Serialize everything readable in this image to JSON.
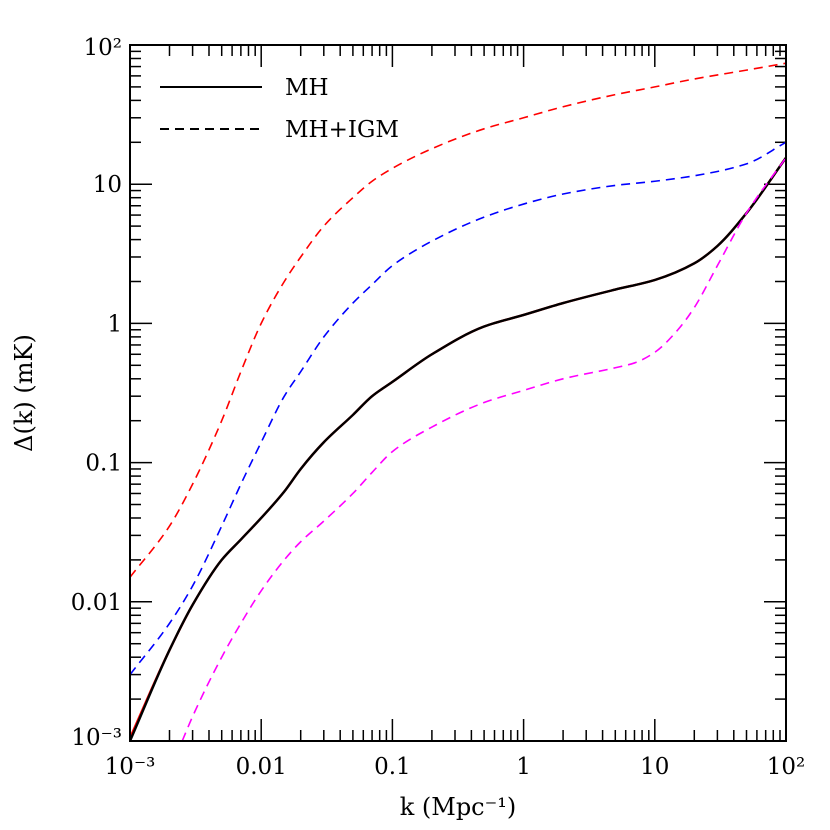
{
  "chart_data": {
    "type": "line",
    "xlabel": "k (Mpc⁻¹)",
    "ylabel": "Δ(k) (mK)",
    "xscale": "log",
    "yscale": "log",
    "xlim": [
      0.001,
      100
    ],
    "ylim": [
      0.001,
      100
    ],
    "grid": false,
    "legend_position": "top-left",
    "x_ticks": [
      {
        "value": 0.001,
        "label": "10⁻³"
      },
      {
        "value": 0.01,
        "label": "0.01"
      },
      {
        "value": 0.1,
        "label": "0.1"
      },
      {
        "value": 1,
        "label": "1"
      },
      {
        "value": 10,
        "label": "10"
      },
      {
        "value": 100,
        "label": "10²"
      }
    ],
    "y_ticks": [
      {
        "value": 0.001,
        "label": "10⁻³"
      },
      {
        "value": 0.01,
        "label": "0.01"
      },
      {
        "value": 0.1,
        "label": "0.1"
      },
      {
        "value": 1,
        "label": "1"
      },
      {
        "value": 10,
        "label": "10"
      },
      {
        "value": 100,
        "label": "10²"
      }
    ],
    "legend": [
      {
        "label": "MH",
        "style": "solid"
      },
      {
        "label": "MH+IGM",
        "style": "dashed"
      }
    ],
    "series": [
      {
        "color": "#ff0000",
        "style": "dashed",
        "x": [
          0.001,
          0.002,
          0.003,
          0.005,
          0.007,
          0.01,
          0.015,
          0.02,
          0.03,
          0.05,
          0.07,
          0.1,
          0.2,
          0.5,
          1,
          2,
          5,
          10,
          20,
          50,
          100
        ],
        "y": [
          0.015,
          0.035,
          0.07,
          0.2,
          0.45,
          1.0,
          2.0,
          3.0,
          5.0,
          8.0,
          10.5,
          13.0,
          18.0,
          25.0,
          30.0,
          36.0,
          44.0,
          50.0,
          57.0,
          66.0,
          74.0
        ]
      },
      {
        "color": "#0000ff",
        "style": "dashed",
        "x": [
          0.001,
          0.002,
          0.003,
          0.005,
          0.007,
          0.01,
          0.015,
          0.02,
          0.03,
          0.05,
          0.07,
          0.1,
          0.2,
          0.5,
          1,
          2,
          5,
          10,
          20,
          50,
          100
        ],
        "y": [
          0.003,
          0.007,
          0.013,
          0.035,
          0.07,
          0.14,
          0.3,
          0.45,
          0.8,
          1.4,
          1.9,
          2.6,
          3.9,
          5.8,
          7.2,
          8.5,
          9.8,
          10.5,
          11.5,
          14.0,
          20.0
        ]
      },
      {
        "color": "#ff0000",
        "style": "solid",
        "x": [
          0.001,
          0.002,
          0.003,
          0.005,
          0.007,
          0.01,
          0.015,
          0.02,
          0.03,
          0.05,
          0.07,
          0.1,
          0.2,
          0.5,
          1,
          2,
          5,
          10,
          20,
          30,
          50,
          100
        ],
        "y": [
          0.00105,
          0.0045,
          0.0095,
          0.02,
          0.028,
          0.04,
          0.062,
          0.09,
          0.14,
          0.22,
          0.3,
          0.38,
          0.6,
          0.95,
          1.15,
          1.4,
          1.75,
          2.05,
          2.7,
          3.6,
          6.2,
          15.5
        ]
      },
      {
        "color": "#000000",
        "style": "solid",
        "x": [
          0.001,
          0.002,
          0.003,
          0.005,
          0.007,
          0.01,
          0.015,
          0.02,
          0.03,
          0.05,
          0.07,
          0.1,
          0.2,
          0.5,
          1,
          2,
          5,
          10,
          20,
          30,
          50,
          100
        ],
        "y": [
          0.001,
          0.0045,
          0.0095,
          0.02,
          0.028,
          0.04,
          0.062,
          0.09,
          0.14,
          0.22,
          0.3,
          0.38,
          0.6,
          0.95,
          1.15,
          1.4,
          1.75,
          2.05,
          2.7,
          3.6,
          6.2,
          15.5
        ]
      },
      {
        "color": "#ff00ff",
        "style": "dashed",
        "x": [
          0.0025,
          0.003,
          0.005,
          0.007,
          0.01,
          0.015,
          0.02,
          0.03,
          0.05,
          0.07,
          0.1,
          0.2,
          0.5,
          1,
          2,
          5,
          7,
          10,
          15,
          20,
          30,
          50,
          100
        ],
        "y": [
          0.001,
          0.0015,
          0.004,
          0.007,
          0.012,
          0.02,
          0.027,
          0.038,
          0.06,
          0.085,
          0.12,
          0.18,
          0.27,
          0.33,
          0.4,
          0.48,
          0.52,
          0.62,
          0.9,
          1.3,
          2.6,
          6.2,
          15.5
        ]
      }
    ]
  }
}
